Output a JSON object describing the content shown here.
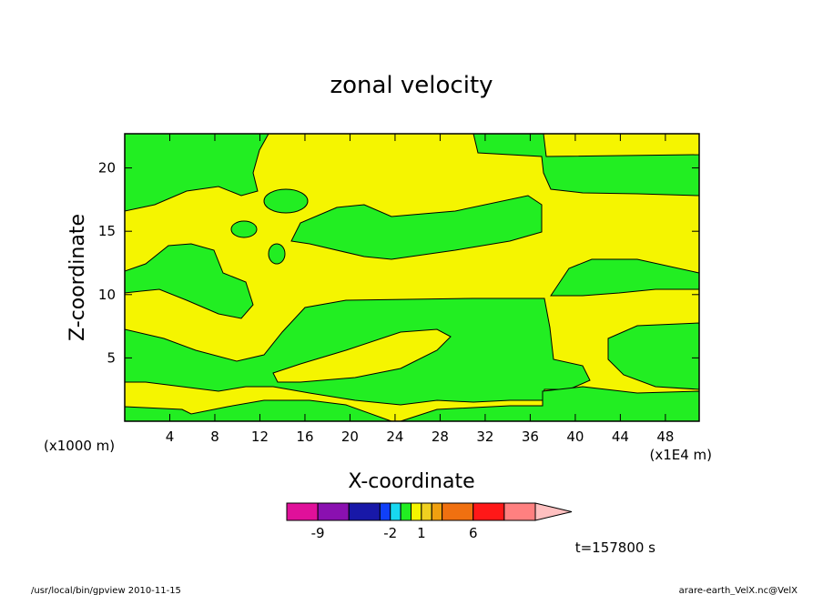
{
  "chart_data": {
    "type": "contour",
    "title": "zonal velocity",
    "xlabel": "X-coordinate",
    "ylabel": "Z-coordinate",
    "x_unit_left": "(x1000 m)",
    "x_unit_right": "(x1E4 m)",
    "xlim": [
      0,
      51
    ],
    "xticks": [
      4,
      8,
      12,
      16,
      20,
      24,
      28,
      32,
      36,
      40,
      44,
      48
    ],
    "ylim": [
      0,
      22.7
    ],
    "yticks": [
      5,
      10,
      15,
      20
    ],
    "levels": [
      -12,
      -9,
      -6,
      -3,
      -2,
      -1,
      0,
      1,
      2,
      3,
      6,
      9,
      12
    ],
    "colors": [
      "#e0109a",
      "#8a10b0",
      "#1818a8",
      "#1040f8",
      "#18d8f0",
      "#22ee22",
      "#f5f500",
      "#f0d020",
      "#f0a010",
      "#f07010",
      "#ff1818",
      "#ff8080"
    ],
    "over_color": "#ffc0c0",
    "colorbar_ticks": [
      -9,
      -2,
      1,
      6
    ],
    "annotation": "t=157800 s"
  },
  "footer": {
    "left": "/usr/local/bin/gpview  2010-11-15",
    "right": "arare-earth_VelX.nc@VelX"
  }
}
